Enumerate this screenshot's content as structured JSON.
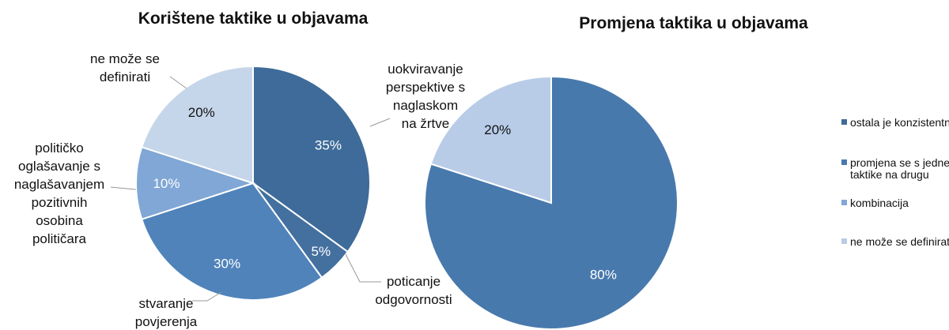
{
  "chart_data": [
    {
      "type": "pie",
      "title": "Korištene taktike u objavama",
      "categories": [
        "uokviravanje\nperspektive s\nnaglaskom\nna žrtve",
        "poticanje\nodgovornosti",
        "stvaranje\npovjerenja",
        "političko\noglašavanje s\nnaglašavanjem\npozitivnih\nosobina\npolitičara",
        "ne može se\ndefinirati"
      ],
      "values": [
        35,
        5,
        30,
        10,
        20
      ],
      "value_labels": [
        "35%",
        "5%",
        "30%",
        "10%",
        "20%"
      ],
      "colors": [
        "#3e6b99",
        "#44709f",
        "#4f83ba",
        "#80a7d5",
        "#c6d6ea"
      ]
    },
    {
      "type": "pie",
      "title": "Promjena taktika u objavama",
      "categories": [
        "ostala je konzistentna",
        "promjena se s jedne\ntaktike na drugu",
        "kombinacija",
        "ne može se definirati"
      ],
      "values": [
        0,
        80,
        0,
        20
      ],
      "value_labels": [
        null,
        "80%",
        null,
        "20%"
      ],
      "colors": [
        "#3e6b99",
        "#4879ad",
        "#80a7d5",
        "#b8cce8"
      ],
      "legend": "right"
    }
  ]
}
